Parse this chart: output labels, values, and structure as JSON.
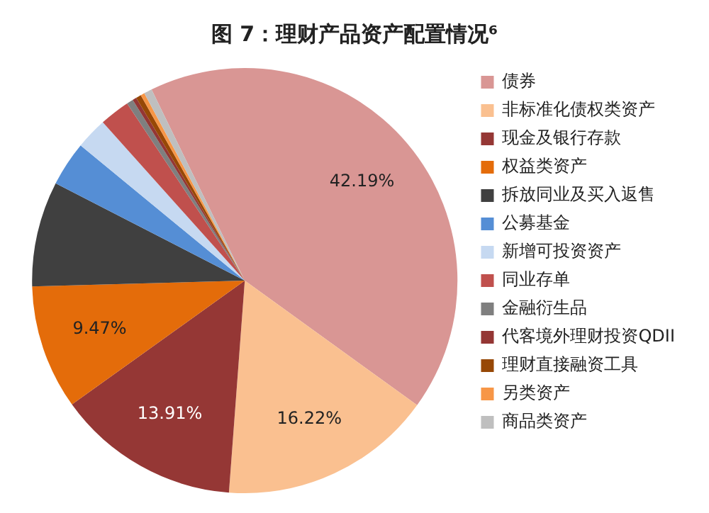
{
  "chart_data": {
    "type": "pie",
    "title": "图 7：理财产品资产配置情况⁶",
    "categories": [
      "债券",
      "非标准化债权类资产",
      "现金及银行存款",
      "权益类资产",
      "拆放同业及买入返售",
      "公募基金",
      "新增可投资资产",
      "同业存单",
      "金融衍生品",
      "代客境外理财投资QDII",
      "理财直接融资工具",
      "另类资产",
      "商品类资产"
    ],
    "values": [
      42.19,
      16.22,
      13.91,
      9.47,
      8.0,
      3.4,
      2.4,
      2.3,
      0.5,
      0.3,
      0.4,
      0.3,
      0.61
    ],
    "colors": [
      "#d99694",
      "#fac090",
      "#953735",
      "#e46c0a",
      "#404040",
      "#558ed5",
      "#c6d9f1",
      "#c0504d",
      "#7f7f7f",
      "#943634",
      "#974806",
      "#f79646",
      "#bfbfbf"
    ],
    "value_labels": [
      "42.19%",
      "16.22%",
      "13.91%",
      "9.47%",
      null,
      null,
      null,
      null,
      null,
      null,
      null,
      null,
      null
    ],
    "legend": "right"
  }
}
